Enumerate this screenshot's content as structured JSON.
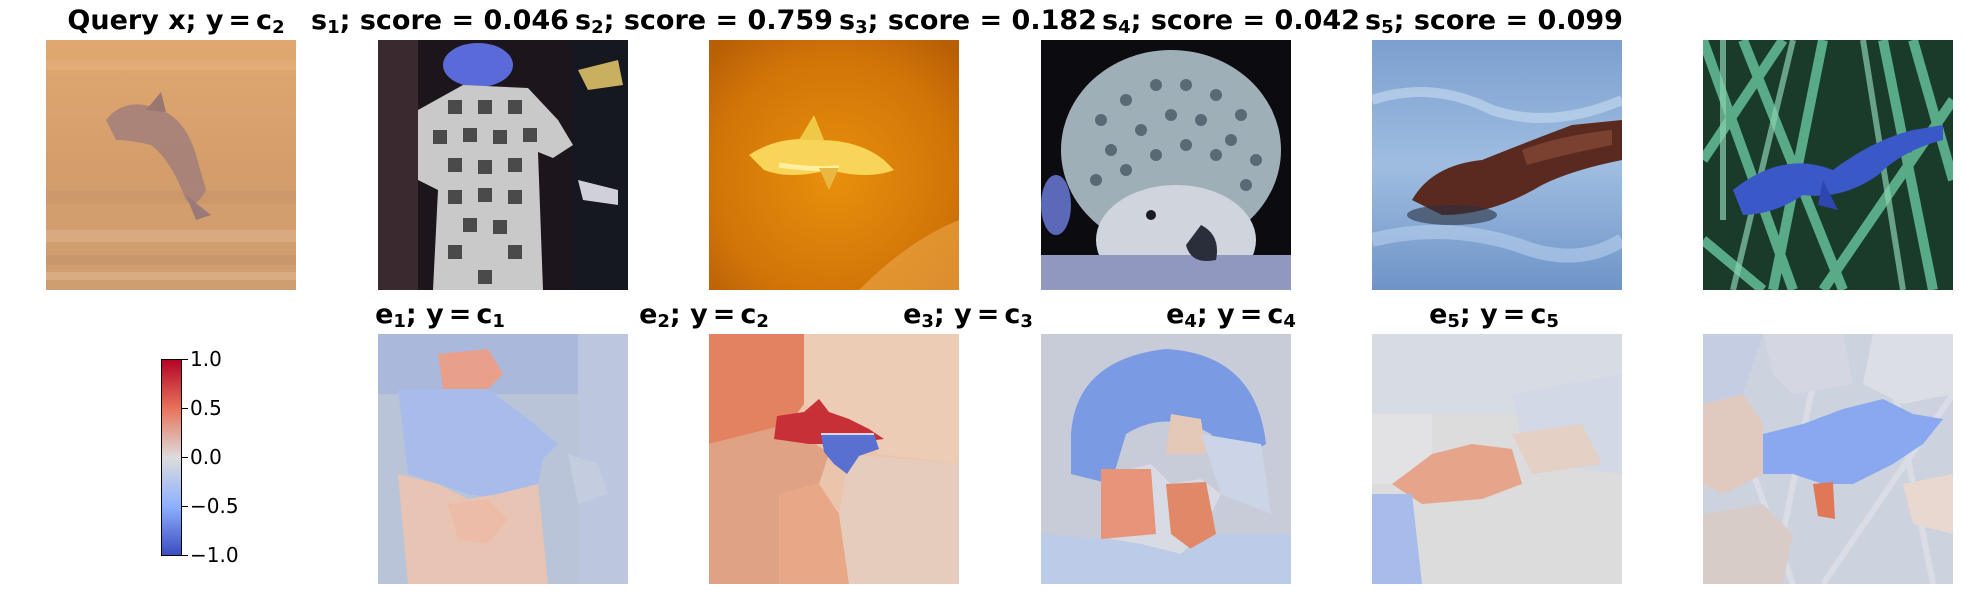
{
  "query": {
    "label": "Query x;",
    "y_label": "y",
    "eq": "=",
    "class": "c",
    "class_sub": "2"
  },
  "examples": [
    {
      "s": "s",
      "idx": "1",
      "score_label": "score = 0.046",
      "e": "e",
      "y_label": "y",
      "eq": "=",
      "class": "c",
      "class_sub": "1"
    },
    {
      "s": "s",
      "idx": "2",
      "score_label": "score = 0.759",
      "e": "e",
      "y_label": "y",
      "eq": "=",
      "class": "c",
      "class_sub": "2"
    },
    {
      "s": "s",
      "idx": "3",
      "score_label": "score = 0.182",
      "e": "e",
      "y_label": "y",
      "eq": "=",
      "class": "c",
      "class_sub": "3"
    },
    {
      "s": "s",
      "idx": "4",
      "score_label": "score = 0.042",
      "e": "e",
      "y_label": "y",
      "eq": "=",
      "class": "c",
      "class_sub": "4"
    },
    {
      "s": "s",
      "idx": "5",
      "score_label": "score = 0.099",
      "e": "e",
      "y_label": "y",
      "eq": "=",
      "class": "c",
      "class_sub": "5"
    }
  ],
  "colorbar": {
    "ticks": [
      "1.0",
      "0.5",
      "0.0",
      "−0.5",
      "−1.0"
    ],
    "colors": [
      "#b40426",
      "#e7745b",
      "#dddcdc",
      "#8db0fe",
      "#3b4cc0"
    ]
  }
}
